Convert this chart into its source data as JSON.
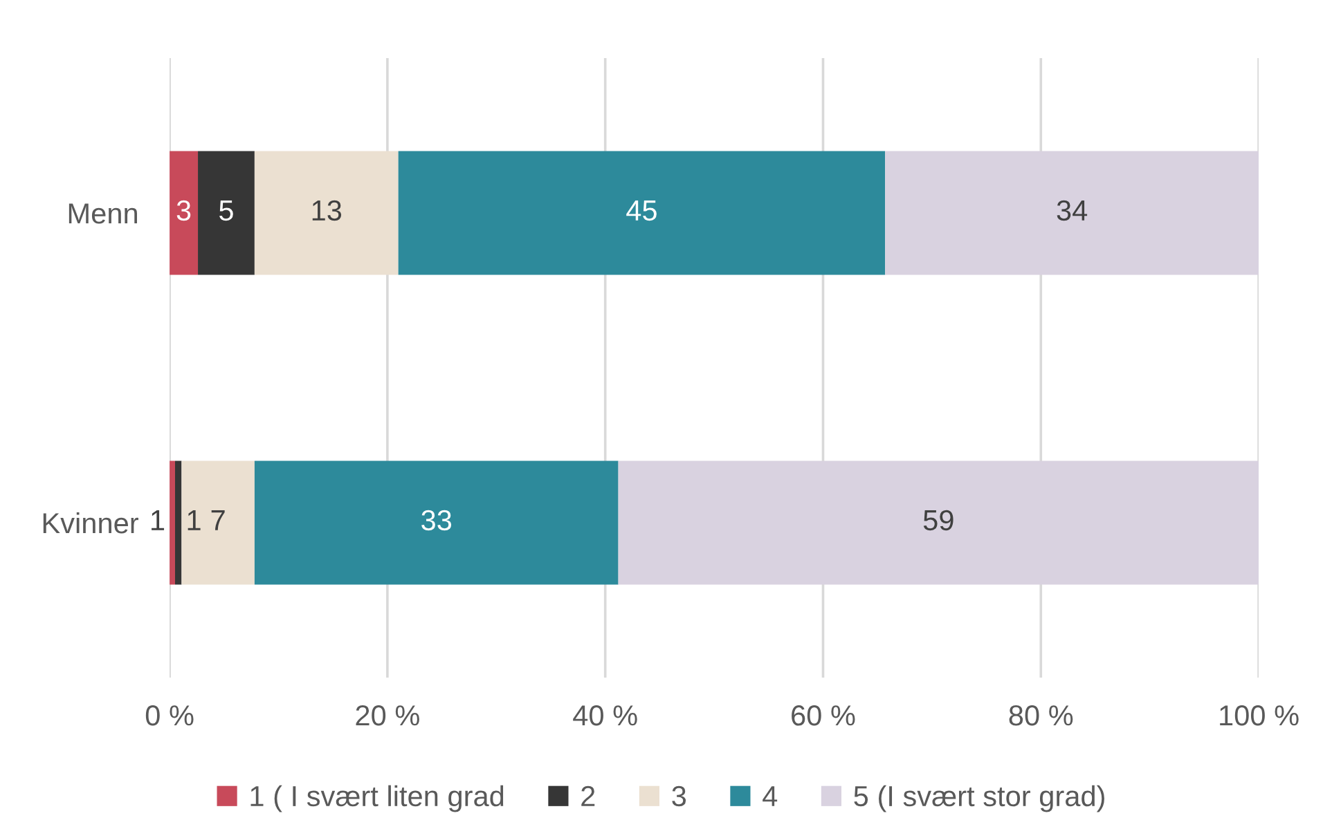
{
  "chart_data": {
    "type": "bar",
    "orientation": "horizontal",
    "stacked": true,
    "categories": [
      "Menn",
      "Kvinner"
    ],
    "series": [
      {
        "name": "1 ( I svært liten grad",
        "color": "#c84a5a",
        "values": [
          2.6,
          0.5
        ],
        "value_labels": [
          "3",
          "1"
        ]
      },
      {
        "name": "2",
        "color": "#363636",
        "values": [
          5.2,
          0.6
        ],
        "value_labels": [
          "5",
          "1"
        ]
      },
      {
        "name": "3",
        "color": "#ebe0d1",
        "values": [
          13.2,
          6.7
        ],
        "value_labels": [
          "13",
          "7"
        ]
      },
      {
        "name": "4",
        "color": "#2d8a9b",
        "values": [
          44.7,
          33.4
        ],
        "value_labels": [
          "45",
          "33"
        ]
      },
      {
        "name": "5 (I svært stor grad)",
        "color": "#d9d2e0",
        "values": [
          34.3,
          58.8
        ],
        "value_labels": [
          "34",
          "59"
        ]
      }
    ],
    "xlim": [
      0,
      100
    ],
    "xticks": [
      {
        "value": 0,
        "label": "0 %"
      },
      {
        "value": 20,
        "label": "20 %"
      },
      {
        "value": 40,
        "label": "40 %"
      },
      {
        "value": 60,
        "label": "60 %"
      },
      {
        "value": 80,
        "label": "80 %"
      },
      {
        "value": 100,
        "label": "100 %"
      }
    ],
    "grid": "x",
    "legend": "bottom"
  }
}
